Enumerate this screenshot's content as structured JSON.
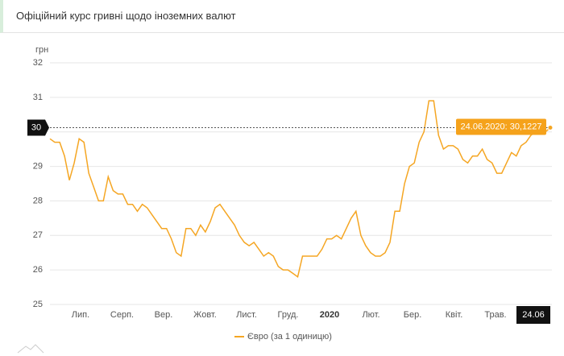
{
  "header": {
    "title": "Офіційний курс гривні щодо іноземних валют"
  },
  "chart_data": {
    "type": "line",
    "y_label": "грн",
    "ylim": [
      25,
      32
    ],
    "yticks": [
      25,
      26,
      27,
      28,
      29,
      30,
      31,
      32
    ],
    "grid": true,
    "xticks": [
      "Лип.",
      "Серп.",
      "Вер.",
      "Жовт.",
      "Лист.",
      "Груд.",
      "2020",
      "Лют.",
      "Бер.",
      "Квіт.",
      "Трав.",
      "24.06"
    ],
    "crosshair_label": "30",
    "tooltip": "24.06.2020: 30,1227",
    "series": [
      {
        "name": "Євро (за 1 одиницю)",
        "color": "#f5a623",
        "values": [
          29.8,
          29.7,
          29.7,
          29.3,
          28.6,
          29.1,
          29.8,
          29.7,
          28.8,
          28.4,
          28.0,
          28.0,
          28.7,
          28.3,
          28.2,
          28.2,
          27.9,
          27.9,
          27.7,
          27.9,
          27.8,
          27.6,
          27.4,
          27.2,
          27.2,
          26.9,
          26.5,
          26.4,
          27.2,
          27.2,
          27.0,
          27.3,
          27.1,
          27.4,
          27.8,
          27.9,
          27.7,
          27.5,
          27.3,
          27.0,
          26.8,
          26.7,
          26.8,
          26.6,
          26.4,
          26.5,
          26.4,
          26.1,
          26.0,
          26.0,
          25.9,
          25.8,
          26.4,
          26.4,
          26.4,
          26.4,
          26.6,
          26.9,
          26.9,
          27.0,
          26.9,
          27.2,
          27.5,
          27.7,
          27.0,
          26.7,
          26.5,
          26.4,
          26.4,
          26.5,
          26.8,
          27.7,
          27.7,
          28.5,
          29.0,
          29.1,
          29.7,
          30.0,
          30.9,
          30.9,
          29.9,
          29.5,
          29.6,
          29.6,
          29.5,
          29.2,
          29.1,
          29.3,
          29.3,
          29.5,
          29.2,
          29.1,
          28.8,
          28.8,
          29.1,
          29.4,
          29.3,
          29.6,
          29.7,
          29.9,
          30.0,
          30.1,
          30.0,
          30.1227
        ]
      }
    ]
  }
}
